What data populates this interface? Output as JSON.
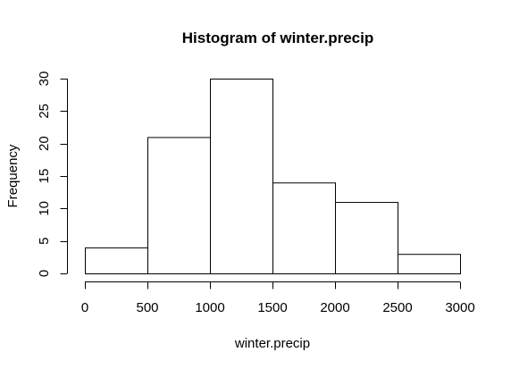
{
  "chart_data": {
    "type": "bar",
    "title": "Histogram of winter.precip",
    "xlabel": "winter.precip",
    "ylabel": "Frequency",
    "bins": [
      {
        "start": 0,
        "end": 500,
        "count": 4
      },
      {
        "start": 500,
        "end": 1000,
        "count": 21
      },
      {
        "start": 1000,
        "end": 1500,
        "count": 30
      },
      {
        "start": 1500,
        "end": 2000,
        "count": 14
      },
      {
        "start": 2000,
        "end": 2500,
        "count": 11
      },
      {
        "start": 2500,
        "end": 3000,
        "count": 3
      }
    ],
    "xticks": [
      0,
      500,
      1000,
      1500,
      2000,
      2500,
      3000
    ],
    "yticks": [
      0,
      5,
      10,
      15,
      20,
      25,
      30
    ],
    "xlim": [
      0,
      3000
    ],
    "ylim": [
      0,
      30
    ],
    "grid": false,
    "bar_fill": "#ffffff",
    "bar_stroke": "#000000"
  }
}
